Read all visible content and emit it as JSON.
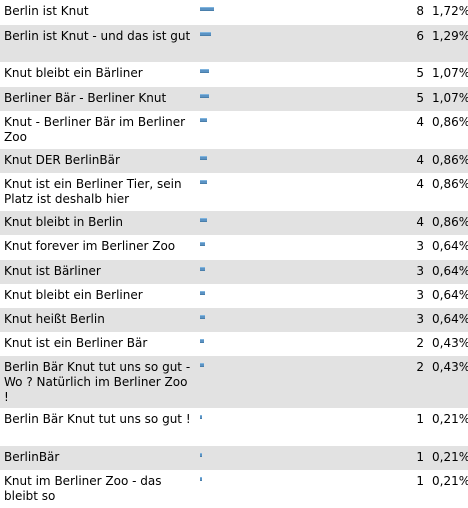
{
  "rows": [
    {
      "label": "Berlin ist Knut",
      "count": "8",
      "percent": "1,72%",
      "share": 1.72,
      "height": 25
    },
    {
      "label": "Berlin ist Knut - und das ist gut",
      "count": "6",
      "percent": "1,29%",
      "share": 1.29,
      "height": 37
    },
    {
      "label": "Knut bleibt ein Bärliner",
      "count": "5",
      "percent": "1,07%",
      "share": 1.07,
      "height": 25
    },
    {
      "label": "Berliner Bär - Berliner Knut",
      "count": "5",
      "percent": "1,07%",
      "share": 1.07,
      "height": 24
    },
    {
      "label": "Knut - Berliner Bär im Berliner Zoo",
      "count": "4",
      "percent": "0,86%",
      "share": 0.86,
      "height": 38
    },
    {
      "label": "Knut DER BerlinBär",
      "count": "4",
      "percent": "0,86%",
      "share": 0.86,
      "height": 24
    },
    {
      "label": "Knut ist ein Berliner Tier, sein Platz ist deshalb hier",
      "count": "4",
      "percent": "0,86%",
      "share": 0.86,
      "height": 38
    },
    {
      "label": "Knut bleibt in Berlin",
      "count": "4",
      "percent": "0,86%",
      "share": 0.86,
      "height": 24
    },
    {
      "label": "Knut forever im Berliner Zoo",
      "count": "3",
      "percent": "0,64%",
      "share": 0.64,
      "height": 25
    },
    {
      "label": "Knut ist Bärliner",
      "count": "3",
      "percent": "0,64%",
      "share": 0.64,
      "height": 24
    },
    {
      "label": "Knut bleibt ein Berliner",
      "count": "3",
      "percent": "0,64%",
      "share": 0.64,
      "height": 24
    },
    {
      "label": "Knut heißt Berlin",
      "count": "3",
      "percent": "0,64%",
      "share": 0.64,
      "height": 24
    },
    {
      "label": "Knut ist ein Berliner Bär",
      "count": "2",
      "percent": "0,43%",
      "share": 0.43,
      "height": 24
    },
    {
      "label": "Berlin Bär Knut tut uns so gut - Wo ? Natürlich im Berliner Zoo !",
      "count": "2",
      "percent": "0,43%",
      "share": 0.43,
      "height": 52
    },
    {
      "label": "Berlin Bär Knut tut uns so gut !",
      "count": "1",
      "percent": "0,21%",
      "share": 0.21,
      "height": 38
    },
    {
      "label": "BerlinBär",
      "count": "1",
      "percent": "0,21%",
      "share": 0.21,
      "height": 24
    },
    {
      "label": "Knut im Berliner Zoo - das bleibt so",
      "count": "1",
      "percent": "0,21%",
      "share": 0.21,
      "height": 38
    }
  ]
}
